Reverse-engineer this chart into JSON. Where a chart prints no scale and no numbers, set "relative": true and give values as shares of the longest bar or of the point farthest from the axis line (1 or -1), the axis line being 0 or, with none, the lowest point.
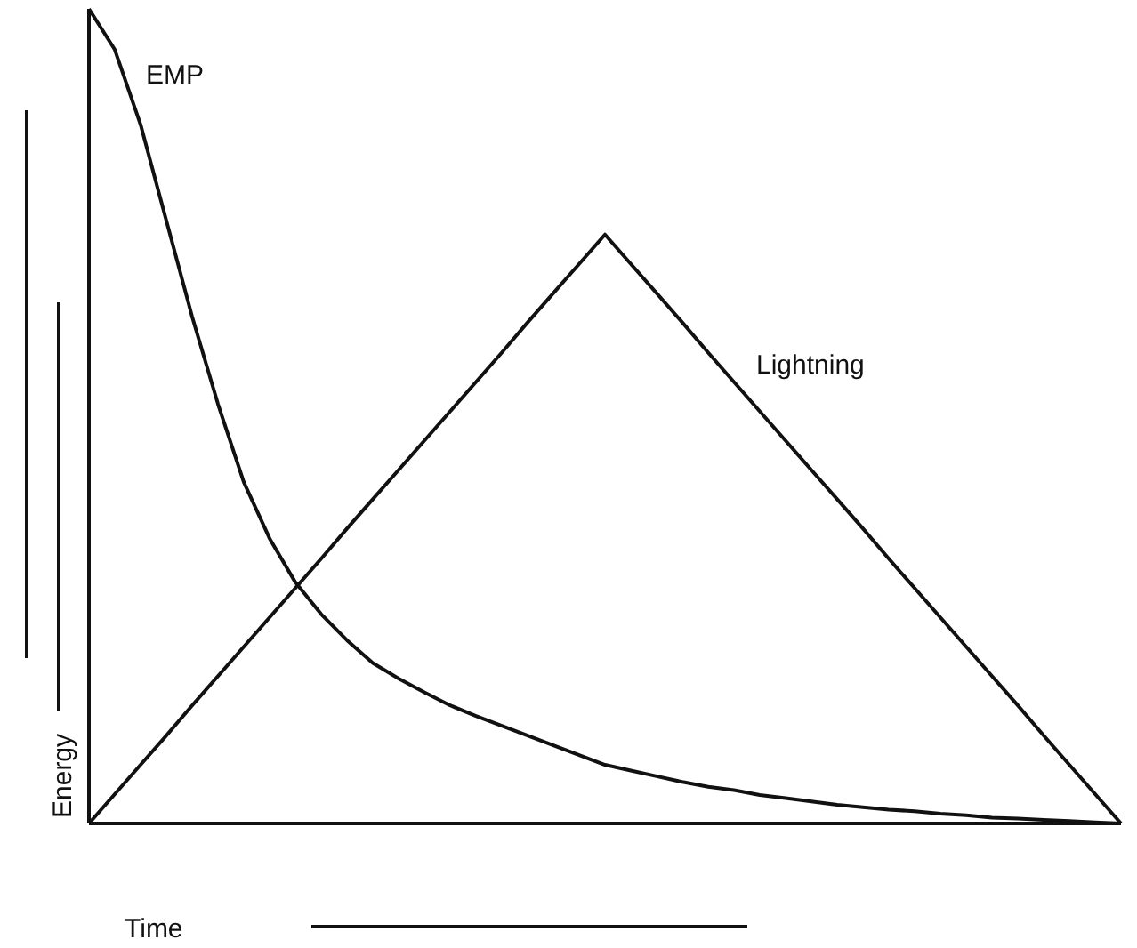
{
  "chart_data": {
    "type": "line",
    "relative": true,
    "xlabel": "Time",
    "ylabel": "Energy",
    "marker": "none",
    "line_style": "solid",
    "categories": [
      null,
      null,
      null,
      null,
      null,
      null,
      null,
      null,
      null,
      null,
      null,
      null,
      null,
      null,
      null,
      null,
      null,
      null,
      null,
      null,
      null,
      null,
      null,
      null,
      null,
      null,
      null,
      null,
      null,
      null,
      null,
      null,
      null,
      null,
      null,
      null,
      null,
      null,
      null,
      null,
      null
    ],
    "series": [
      {
        "name": "EMP",
        "color": "#111111",
        "values": [
          1,
          0.95,
          0.858,
          0.74,
          0.622,
          0.515,
          0.419,
          0.35,
          0.296,
          0.257,
          0.225,
          0.197,
          0.178,
          0.161,
          0.145,
          0.132,
          0.12,
          0.108,
          0.096,
          0.084,
          0.072,
          0.065,
          0.058,
          0.051,
          0.045,
          0.041,
          0.035,
          0.031,
          0.027,
          0.023,
          0.02,
          0.017,
          0.015,
          0.012,
          0.01,
          0.007,
          0.006,
          0.0045,
          0.003,
          0.0015,
          0
        ]
      },
      {
        "name": "Lightning",
        "color": "#111111",
        "values": [
          0,
          0.036,
          0.072,
          0.108,
          0.145,
          0.181,
          0.217,
          0.253,
          0.289,
          0.325,
          0.362,
          0.398,
          0.434,
          0.47,
          0.506,
          0.542,
          0.578,
          0.615,
          0.651,
          0.687,
          0.723,
          0.687,
          0.651,
          0.615,
          0.578,
          0.542,
          0.506,
          0.47,
          0.434,
          0.398,
          0.362,
          0.325,
          0.289,
          0.253,
          0.217,
          0.181,
          0.145,
          0.108,
          0.072,
          0.036,
          0
        ]
      }
    ]
  }
}
